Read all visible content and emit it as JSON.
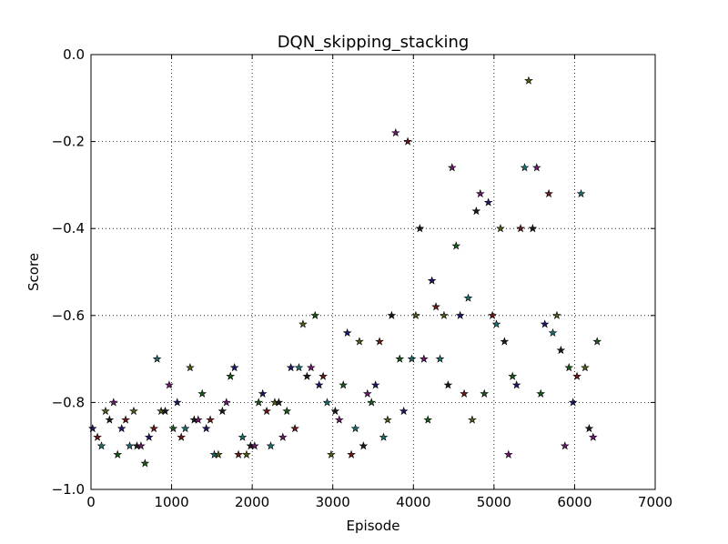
{
  "chart_data": {
    "type": "scatter",
    "title": "DQN_skipping_stacking",
    "xlabel": "Episode",
    "ylabel": "Score",
    "xlim": [
      0,
      7000
    ],
    "ylim": [
      -1.0,
      0.0
    ],
    "xticks": [
      0,
      1000,
      2000,
      3000,
      4000,
      5000,
      6000,
      7000
    ],
    "yticks": [
      0.0,
      -0.2,
      -0.4,
      -0.6,
      -0.8,
      -1.0
    ],
    "xtick_labels": [
      "0",
      "1000",
      "2000",
      "3000",
      "4000",
      "5000",
      "6000",
      "7000"
    ],
    "ytick_labels": [
      "0.0",
      "−0.2",
      "−0.4",
      "−0.6",
      "−0.8",
      "−1.0"
    ],
    "grid": true,
    "marker": "star",
    "marker_colors": [
      "#1a1a6e",
      "#6e1a1a",
      "#1a6e6e",
      "#5a5a1a",
      "#1a1a1a",
      "#6e1a6e",
      "#1a5a1a"
    ],
    "points": [
      [
        20,
        -0.86
      ],
      [
        80,
        -0.88
      ],
      [
        130,
        -0.9
      ],
      [
        180,
        -0.82
      ],
      [
        230,
        -0.84
      ],
      [
        280,
        -0.8
      ],
      [
        330,
        -0.92
      ],
      [
        380,
        -0.86
      ],
      [
        430,
        -0.84
      ],
      [
        480,
        -0.9
      ],
      [
        530,
        -0.82
      ],
      [
        570,
        -0.9
      ],
      [
        620,
        -0.9
      ],
      [
        670,
        -0.94
      ],
      [
        720,
        -0.88
      ],
      [
        780,
        -0.86
      ],
      [
        820,
        -0.7
      ],
      [
        870,
        -0.82
      ],
      [
        920,
        -0.82
      ],
      [
        970,
        -0.76
      ],
      [
        1020,
        -0.86
      ],
      [
        1070,
        -0.8
      ],
      [
        1120,
        -0.88
      ],
      [
        1170,
        -0.86
      ],
      [
        1230,
        -0.72
      ],
      [
        1280,
        -0.84
      ],
      [
        1330,
        -0.84
      ],
      [
        1380,
        -0.78
      ],
      [
        1430,
        -0.86
      ],
      [
        1480,
        -0.84
      ],
      [
        1530,
        -0.92
      ],
      [
        1580,
        -0.92
      ],
      [
        1630,
        -0.82
      ],
      [
        1680,
        -0.8
      ],
      [
        1730,
        -0.74
      ],
      [
        1780,
        -0.72
      ],
      [
        1830,
        -0.92
      ],
      [
        1880,
        -0.88
      ],
      [
        1930,
        -0.92
      ],
      [
        1980,
        -0.9
      ],
      [
        2030,
        -0.9
      ],
      [
        2080,
        -0.8
      ],
      [
        2130,
        -0.78
      ],
      [
        2180,
        -0.82
      ],
      [
        2230,
        -0.9
      ],
      [
        2280,
        -0.8
      ],
      [
        2330,
        -0.8
      ],
      [
        2380,
        -0.88
      ],
      [
        2430,
        -0.82
      ],
      [
        2480,
        -0.72
      ],
      [
        2530,
        -0.86
      ],
      [
        2580,
        -0.72
      ],
      [
        2630,
        -0.62
      ],
      [
        2680,
        -0.74
      ],
      [
        2730,
        -0.72
      ],
      [
        2780,
        -0.6
      ],
      [
        2830,
        -0.76
      ],
      [
        2880,
        -0.74
      ],
      [
        2930,
        -0.8
      ],
      [
        2980,
        -0.92
      ],
      [
        3030,
        -0.82
      ],
      [
        3080,
        -0.84
      ],
      [
        3130,
        -0.76
      ],
      [
        3180,
        -0.64
      ],
      [
        3230,
        -0.92
      ],
      [
        3280,
        -0.86
      ],
      [
        3330,
        -0.66
      ],
      [
        3380,
        -0.9
      ],
      [
        3430,
        -0.78
      ],
      [
        3480,
        -0.8
      ],
      [
        3530,
        -0.76
      ],
      [
        3580,
        -0.66
      ],
      [
        3630,
        -0.88
      ],
      [
        3680,
        -0.84
      ],
      [
        3730,
        -0.6
      ],
      [
        3780,
        -0.18
      ],
      [
        3830,
        -0.7
      ],
      [
        3880,
        -0.82
      ],
      [
        3930,
        -0.2
      ],
      [
        3980,
        -0.7
      ],
      [
        4030,
        -0.6
      ],
      [
        4080,
        -0.4
      ],
      [
        4130,
        -0.7
      ],
      [
        4180,
        -0.84
      ],
      [
        4230,
        -0.52
      ],
      [
        4280,
        -0.58
      ],
      [
        4330,
        -0.7
      ],
      [
        4380,
        -0.6
      ],
      [
        4430,
        -0.76
      ],
      [
        4480,
        -0.26
      ],
      [
        4530,
        -0.44
      ],
      [
        4580,
        -0.6
      ],
      [
        4630,
        -0.78
      ],
      [
        4680,
        -0.56
      ],
      [
        4730,
        -0.84
      ],
      [
        4780,
        -0.36
      ],
      [
        4830,
        -0.32
      ],
      [
        4880,
        -0.78
      ],
      [
        4930,
        -0.34
      ],
      [
        4980,
        -0.6
      ],
      [
        5030,
        -0.62
      ],
      [
        5080,
        -0.4
      ],
      [
        5130,
        -0.66
      ],
      [
        5180,
        -0.92
      ],
      [
        5230,
        -0.74
      ],
      [
        5280,
        -0.76
      ],
      [
        5330,
        -0.4
      ],
      [
        5380,
        -0.26
      ],
      [
        5430,
        -0.06
      ],
      [
        5480,
        -0.4
      ],
      [
        5530,
        -0.26
      ],
      [
        5580,
        -0.78
      ],
      [
        5630,
        -0.62
      ],
      [
        5680,
        -0.32
      ],
      [
        5730,
        -0.64
      ],
      [
        5780,
        -0.6
      ],
      [
        5830,
        -0.68
      ],
      [
        5880,
        -0.9
      ],
      [
        5930,
        -0.72
      ],
      [
        5980,
        -0.8
      ],
      [
        6030,
        -0.74
      ],
      [
        6080,
        -0.32
      ],
      [
        6130,
        -0.72
      ],
      [
        6180,
        -0.86
      ],
      [
        6230,
        -0.88
      ],
      [
        6280,
        -0.66
      ]
    ]
  }
}
